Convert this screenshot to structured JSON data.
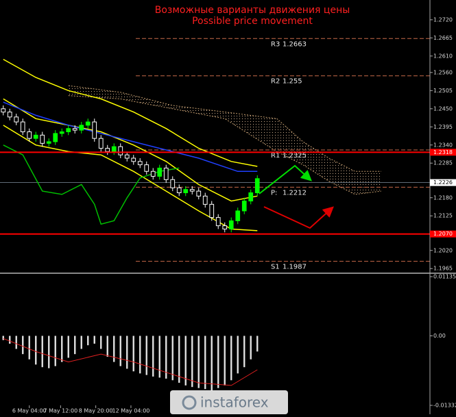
{
  "chart_data": [
    {
      "type": "candlestick",
      "title": "Возможные варианты движения цены",
      "subtitle": "Possible price movement",
      "up_color": "#00ff00",
      "down_color": "#ffffff",
      "open": [
        1.245,
        1.244,
        1.2425,
        1.241,
        1.238,
        1.236,
        1.237,
        1.2345,
        1.235,
        1.2375,
        1.238,
        1.239,
        1.2385,
        1.24,
        1.241,
        1.236,
        1.233,
        1.232,
        1.2335,
        1.231,
        1.23,
        1.229,
        1.228,
        1.226,
        1.2245,
        1.227,
        1.2235,
        1.221,
        1.2195,
        1.2205,
        1.22,
        1.2185,
        1.216,
        1.212,
        1.2095,
        1.2085,
        1.211,
        1.214,
        1.217,
        1.2195
      ],
      "high": [
        1.246,
        1.245,
        1.2435,
        1.242,
        1.239,
        1.238,
        1.238,
        1.236,
        1.2385,
        1.239,
        1.24,
        1.24,
        1.241,
        1.242,
        1.242,
        1.237,
        1.234,
        1.2345,
        1.2345,
        1.232,
        1.231,
        1.23,
        1.229,
        1.227,
        1.228,
        1.228,
        1.2245,
        1.222,
        1.2215,
        1.2215,
        1.221,
        1.2195,
        1.217,
        1.213,
        1.2105,
        1.212,
        1.215,
        1.218,
        1.2205,
        1.2248
      ],
      "low": [
        1.243,
        1.2415,
        1.24,
        1.237,
        1.235,
        1.235,
        1.2335,
        1.2335,
        1.234,
        1.2365,
        1.237,
        1.2375,
        1.2375,
        1.239,
        1.235,
        1.232,
        1.231,
        1.231,
        1.23,
        1.229,
        1.228,
        1.227,
        1.225,
        1.2235,
        1.2235,
        1.2225,
        1.22,
        1.2185,
        1.2185,
        1.219,
        1.2175,
        1.215,
        1.211,
        1.2085,
        1.2075,
        1.2075,
        1.21,
        1.213,
        1.216,
        1.2185
      ],
      "close": [
        1.244,
        1.2425,
        1.241,
        1.238,
        1.236,
        1.237,
        1.2345,
        1.235,
        1.2375,
        1.238,
        1.239,
        1.2385,
        1.24,
        1.241,
        1.236,
        1.233,
        1.232,
        1.2335,
        1.231,
        1.23,
        1.229,
        1.228,
        1.226,
        1.2245,
        1.227,
        1.2235,
        1.221,
        1.2195,
        1.2205,
        1.22,
        1.2185,
        1.216,
        1.212,
        1.2095,
        1.2085,
        1.211,
        1.214,
        1.217,
        1.2195,
        1.2238
      ],
      "overlays": [
        {
          "color": "#ffff00",
          "x": [
            0,
            5,
            10,
            15,
            20,
            25,
            30,
            35,
            39
          ],
          "values": [
            1.26,
            1.2545,
            1.2505,
            1.248,
            1.244,
            1.239,
            1.233,
            1.229,
            1.2275
          ]
        },
        {
          "color": "#ffff00",
          "x": [
            0,
            5,
            10,
            15,
            20,
            25,
            30,
            35,
            39
          ],
          "values": [
            1.248,
            1.242,
            1.24,
            1.238,
            1.234,
            1.229,
            1.222,
            1.217,
            1.2185
          ]
        },
        {
          "color": "#ffff00",
          "x": [
            0,
            5,
            10,
            15,
            20,
            25,
            30,
            35,
            39
          ],
          "values": [
            1.24,
            1.234,
            1.232,
            1.231,
            1.226,
            1.22,
            1.214,
            1.2085,
            1.208
          ]
        },
        {
          "color": "#2040ff",
          "x": [
            0,
            5,
            10,
            18,
            24,
            30,
            36,
            39
          ],
          "values": [
            1.247,
            1.243,
            1.24,
            1.236,
            1.233,
            1.23,
            1.226,
            1.226
          ]
        },
        {
          "color": "#00c000",
          "x": [
            0,
            3,
            6,
            9,
            12,
            14,
            15,
            17,
            19,
            21,
            24,
            27
          ],
          "values": [
            1.234,
            1.231,
            1.22,
            1.219,
            1.222,
            1.216,
            1.21,
            1.211,
            1.218,
            1.224,
            1.226,
            1.227
          ]
        }
      ],
      "cloud": {
        "color": "#c8a070",
        "x": [
          10,
          18,
          26,
          34,
          42,
          46,
          50,
          54,
          58
        ],
        "upper": [
          1.252,
          1.25,
          1.246,
          1.244,
          1.242,
          1.235,
          1.23,
          1.226,
          1.226
        ],
        "lower": [
          1.249,
          1.248,
          1.245,
          1.242,
          1.232,
          1.228,
          1.223,
          1.219,
          1.22
        ]
      },
      "levels": [
        {
          "name": "R3",
          "value": 1.2663
        },
        {
          "name": "R2",
          "value": 1.255
        },
        {
          "name": "R1",
          "value": 1.2325
        },
        {
          "name": "P:",
          "value": 1.2212
        },
        {
          "name": "S1",
          "value": 1.1987
        }
      ],
      "level_color": "#c86a4a",
      "hlines": [
        {
          "value": 1.2318,
          "label": "1.2318"
        },
        {
          "value": 1.207,
          "label": "1.2070"
        }
      ],
      "hline_color": "#ff0000",
      "last_price": 1.2226,
      "xlim": [
        -0.5,
        65.5
      ],
      "xticks": [
        {
          "value": 4,
          "label": "6 May 04:00"
        },
        {
          "value": 8.8,
          "label": "7 May 12:00"
        },
        {
          "value": 14.2,
          "label": "8 May 20:00"
        },
        {
          "value": 19.6,
          "label": "12 May 04:00"
        }
      ],
      "ylim": [
        1.1953,
        1.278
      ],
      "yticks": [
        {
          "value": 1.272,
          "label": "1.2720"
        },
        1.2665,
        {
          "value": 1.261,
          "label": "1.2610"
        },
        {
          "value": 1.256,
          "label": "1.2560"
        },
        1.2505,
        {
          "value": 1.245,
          "label": "1.2450"
        },
        1.2395,
        {
          "value": 1.234,
          "label": "1.2340"
        },
        1.2285,
        {
          "value": 1.218,
          "label": "1.2180"
        },
        1.2125,
        {
          "value": 1.202,
          "label": "1.2020"
        },
        1.1965
      ]
    },
    {
      "type": "bar",
      "color": "#e0e0e0",
      "values": [
        -0.0008,
        -0.0015,
        -0.0025,
        -0.0035,
        -0.0045,
        -0.0055,
        -0.006,
        -0.0062,
        -0.0058,
        -0.005,
        -0.0042,
        -0.0035,
        -0.0025,
        -0.0018,
        -0.0015,
        -0.0025,
        -0.004,
        -0.005,
        -0.0058,
        -0.0063,
        -0.0068,
        -0.0072,
        -0.0075,
        -0.0078,
        -0.008,
        -0.0082,
        -0.0085,
        -0.009,
        -0.0095,
        -0.0098,
        -0.01,
        -0.0102,
        -0.0105,
        -0.01,
        -0.0095,
        -0.0085,
        -0.0072,
        -0.006,
        -0.0045,
        -0.003
      ],
      "signal": {
        "color": "#e02020",
        "x": [
          0,
          5,
          10,
          15,
          20,
          25,
          30,
          35,
          39
        ],
        "values": [
          -0.0005,
          -0.003,
          -0.005,
          -0.0035,
          -0.005,
          -0.007,
          -0.009,
          -0.0095,
          -0.0065
        ]
      },
      "ylim": [
        -0.01332,
        0.01135
      ],
      "yticks": [
        0.01135,
        {
          "value": 0,
          "label": "0.00"
        },
        -0.01332
      ]
    }
  ],
  "logo": "instaforex"
}
